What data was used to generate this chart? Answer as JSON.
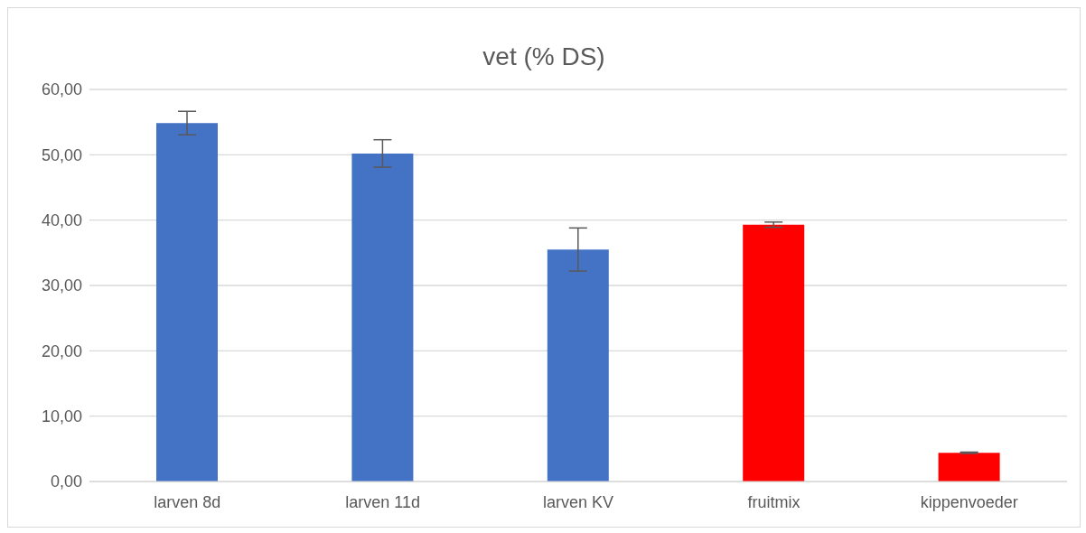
{
  "chart_data": {
    "type": "bar",
    "title": "vet (% DS)",
    "categories": [
      "larven 8d",
      "larven 11d",
      "larven KV",
      "fruitmix",
      "kippenvoeder"
    ],
    "values": [
      54.85,
      50.2,
      35.5,
      39.3,
      4.4
    ],
    "errors": [
      1.8,
      2.1,
      3.3,
      0.4,
      0.1
    ],
    "colors": [
      "#4472c4",
      "#4472c4",
      "#4472c4",
      "#ff0000",
      "#ff0000"
    ],
    "ylim": [
      0,
      60
    ],
    "yticks": [
      {
        "value": 0,
        "label": "0,00"
      },
      {
        "value": 10,
        "label": "10,00"
      },
      {
        "value": 20,
        "label": "20,00"
      },
      {
        "value": 30,
        "label": "30,00"
      },
      {
        "value": 40,
        "label": "40,00"
      },
      {
        "value": 50,
        "label": "50,00"
      },
      {
        "value": 60,
        "label": "60,00"
      }
    ],
    "grid": "y"
  }
}
